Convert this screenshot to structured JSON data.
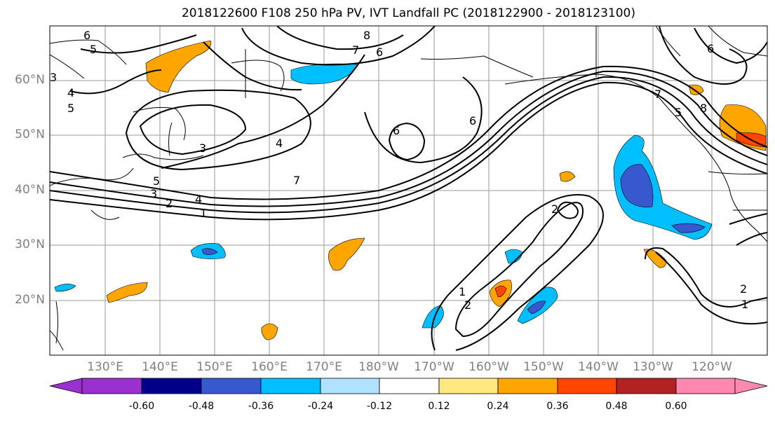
{
  "title": "2018122600 F108 250 hPa PV, IVT Landfall PC (2018122900 - 2018123100)",
  "map": {
    "lat_labels": [
      "60°N",
      "50°N",
      "40°N",
      "30°N",
      "20°N"
    ],
    "lon_labels": [
      "130°E",
      "140°E",
      "150°E",
      "160°E",
      "170°E",
      "180°W",
      "170°W",
      "160°W",
      "150°W",
      "140°W",
      "130°W",
      "120°W"
    ],
    "contour_labels": [
      "6",
      "5",
      "4",
      "5",
      "3",
      "8",
      "7",
      "6",
      "3",
      "4",
      "7",
      "5",
      "4",
      "3",
      "2",
      "1",
      "6",
      "6",
      "2",
      "1",
      "2",
      "2",
      "1",
      "7",
      "5",
      "8",
      "6"
    ]
  },
  "colorbar": {
    "colors": [
      "#9b30d0",
      "#00008b",
      "#3858d0",
      "#00bfff",
      "#b0e2ff",
      "#ffffff",
      "#ffe880",
      "#ffa500",
      "#ff4500",
      "#b22222",
      "#ff88b0"
    ],
    "tick_labels": [
      "-0.60",
      "-0.48",
      "-0.36",
      "-0.24",
      "-0.12",
      "0.12",
      "0.24",
      "0.36",
      "0.48",
      "0.60"
    ]
  }
}
